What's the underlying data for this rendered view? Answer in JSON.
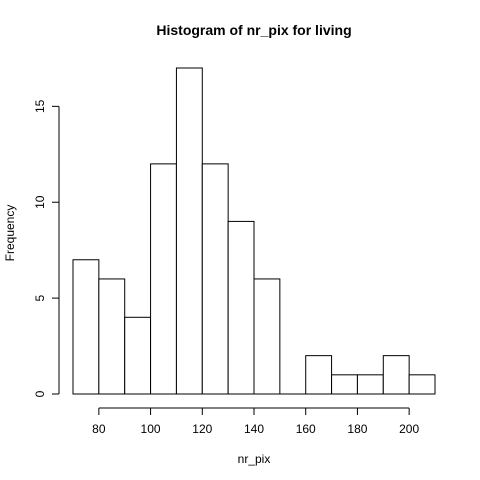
{
  "chart_data": {
    "type": "bar",
    "title": "Histogram of nr_pix for living",
    "xlabel": "nr_pix",
    "ylabel": "Frequency",
    "bins": [
      {
        "start": 70,
        "end": 80,
        "count": 7
      },
      {
        "start": 80,
        "end": 90,
        "count": 6
      },
      {
        "start": 90,
        "end": 100,
        "count": 4
      },
      {
        "start": 100,
        "end": 110,
        "count": 12
      },
      {
        "start": 110,
        "end": 120,
        "count": 17
      },
      {
        "start": 120,
        "end": 130,
        "count": 12
      },
      {
        "start": 130,
        "end": 140,
        "count": 9
      },
      {
        "start": 140,
        "end": 150,
        "count": 6
      },
      {
        "start": 150,
        "end": 160,
        "count": 0
      },
      {
        "start": 160,
        "end": 170,
        "count": 2
      },
      {
        "start": 170,
        "end": 180,
        "count": 1
      },
      {
        "start": 180,
        "end": 190,
        "count": 1
      },
      {
        "start": 190,
        "end": 200,
        "count": 2
      },
      {
        "start": 200,
        "end": 210,
        "count": 1
      }
    ],
    "xticks": [
      "80",
      "100",
      "120",
      "140",
      "160",
      "180",
      "200"
    ],
    "yticks": [
      "0",
      "5",
      "10",
      "15"
    ],
    "xlim": [
      70,
      210
    ],
    "ylim": [
      0,
      17
    ],
    "grid": false,
    "bar_fill": "#ffffff",
    "bar_stroke": "#000000"
  }
}
